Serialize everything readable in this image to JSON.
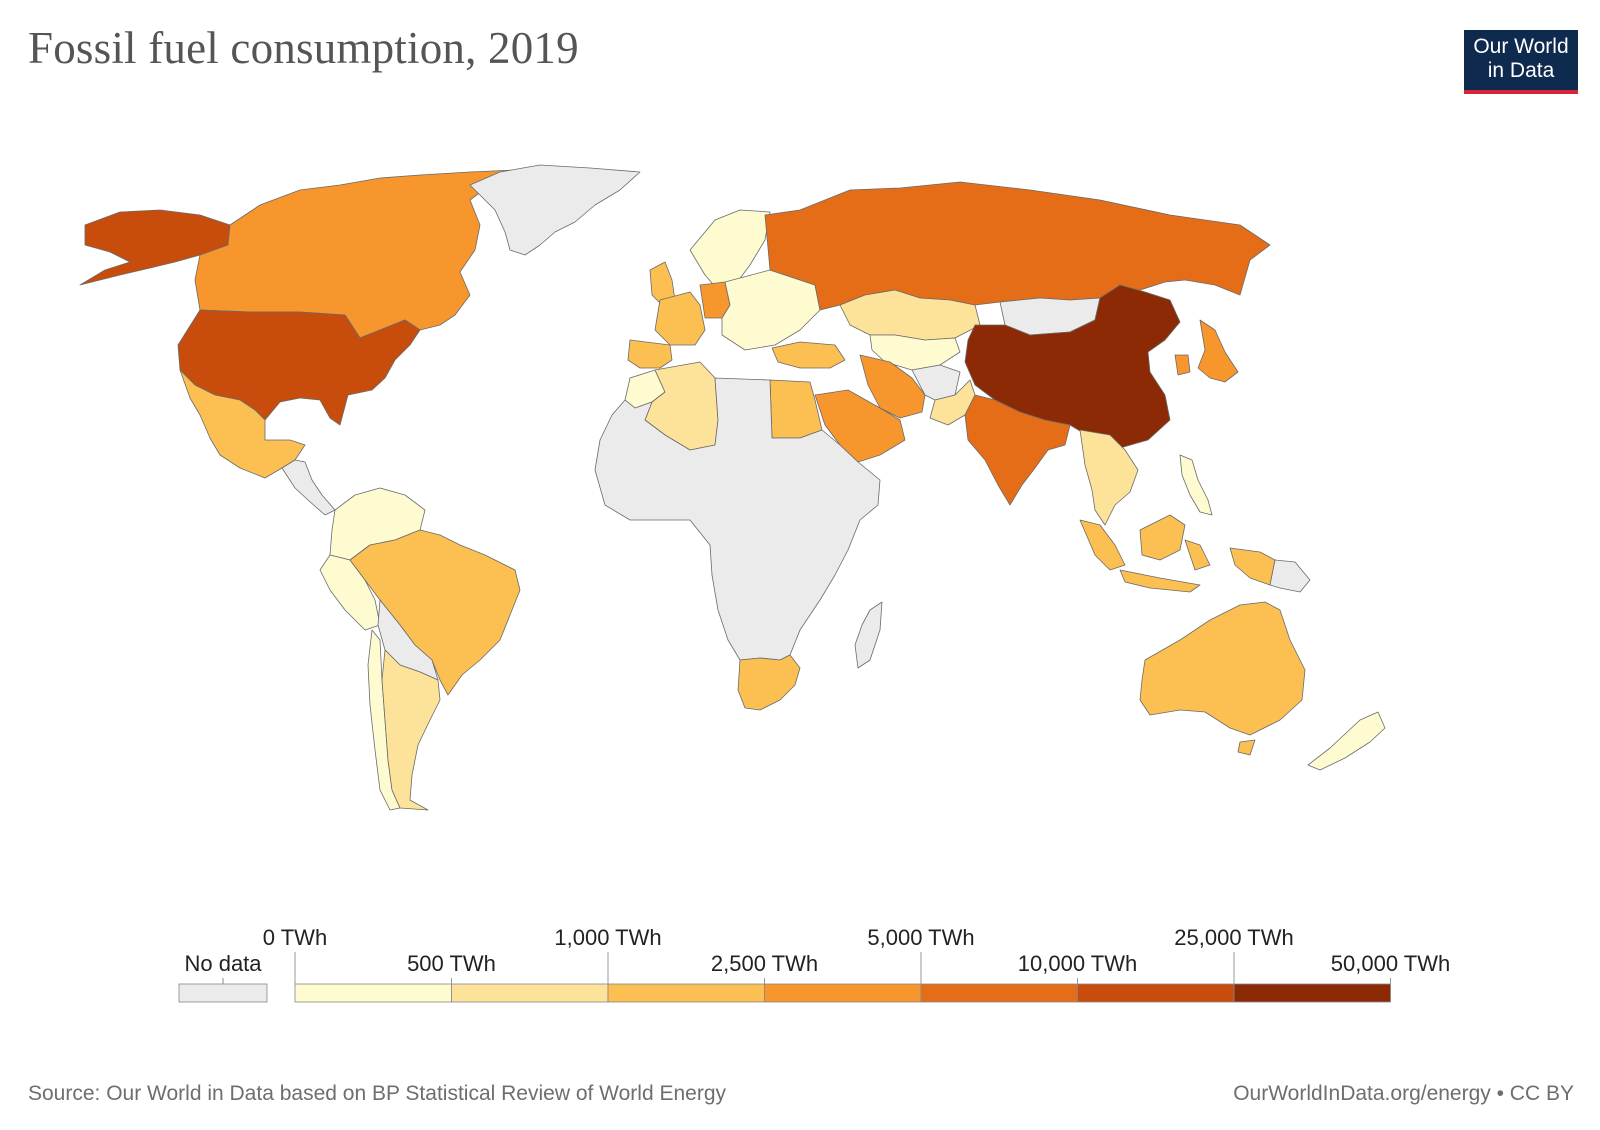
{
  "title": "Fossil fuel consumption, 2019",
  "logo": {
    "line1": "Our World",
    "line2": "in Data"
  },
  "legend": {
    "no_data_label": "No data",
    "no_data_color": "#ebebeb",
    "upper_labels": [
      "0 TWh",
      "1,000 TWh",
      "5,000 TWh",
      "25,000 TWh"
    ],
    "lower_labels": [
      "500 TWh",
      "2,500 TWh",
      "10,000 TWh",
      "50,000 TWh"
    ],
    "bins": [
      {
        "from": 0,
        "to": 500,
        "color": "#fefbd0"
      },
      {
        "from": 500,
        "to": 1000,
        "color": "#fde29a"
      },
      {
        "from": 1000,
        "to": 2500,
        "color": "#fbbf52"
      },
      {
        "from": 2500,
        "to": 5000,
        "color": "#f7962d"
      },
      {
        "from": 5000,
        "to": 10000,
        "color": "#e66d18"
      },
      {
        "from": 10000,
        "to": 25000,
        "color": "#c84c0c"
      },
      {
        "from": 25000,
        "to": 50000,
        "color": "#8b2a05"
      }
    ]
  },
  "countries": [
    {
      "id": "united-states",
      "color": "#c84c0c"
    },
    {
      "id": "alaska",
      "color": "#c84c0c"
    },
    {
      "id": "canada",
      "color": "#f7962d"
    },
    {
      "id": "greenland",
      "color": "#ebebeb"
    },
    {
      "id": "mexico",
      "color": "#fbbf52"
    },
    {
      "id": "central-america",
      "color": "#ebebeb"
    },
    {
      "id": "colombia-venezuela",
      "color": "#fefbd0"
    },
    {
      "id": "ecuador-peru",
      "color": "#fefbd0"
    },
    {
      "id": "brazil",
      "color": "#fbbf52"
    },
    {
      "id": "bolivia-paraguay",
      "color": "#ebebeb"
    },
    {
      "id": "chile",
      "color": "#fefbd0"
    },
    {
      "id": "argentina",
      "color": "#fde29a"
    },
    {
      "id": "western-europe",
      "color": "#fbbf52"
    },
    {
      "id": "spain",
      "color": "#fbbf52"
    },
    {
      "id": "united-kingdom",
      "color": "#fbbf52"
    },
    {
      "id": "scandinavia",
      "color": "#fefbd0"
    },
    {
      "id": "germany",
      "color": "#f7962d"
    },
    {
      "id": "eastern-europe",
      "color": "#fefbd0"
    },
    {
      "id": "russia",
      "color": "#e66d18"
    },
    {
      "id": "kazakhstan",
      "color": "#fde29a"
    },
    {
      "id": "central-asia",
      "color": "#fefbd0"
    },
    {
      "id": "mongolia",
      "color": "#ebebeb"
    },
    {
      "id": "china",
      "color": "#8b2a05"
    },
    {
      "id": "india",
      "color": "#e66d18"
    },
    {
      "id": "pakistan",
      "color": "#fde29a"
    },
    {
      "id": "afghanistan",
      "color": "#ebebeb"
    },
    {
      "id": "iran",
      "color": "#f7962d"
    },
    {
      "id": "turkey",
      "color": "#fbbf52"
    },
    {
      "id": "saudi-arabia",
      "color": "#f7962d"
    },
    {
      "id": "egypt",
      "color": "#fbbf52"
    },
    {
      "id": "algeria",
      "color": "#fde29a"
    },
    {
      "id": "morocco",
      "color": "#fefbd0"
    },
    {
      "id": "africa-rest",
      "color": "#ebebeb"
    },
    {
      "id": "south-africa",
      "color": "#fbbf52"
    },
    {
      "id": "madagascar",
      "color": "#ebebeb"
    },
    {
      "id": "japan",
      "color": "#f7962d"
    },
    {
      "id": "south-korea",
      "color": "#f7962d"
    },
    {
      "id": "southeast-asia",
      "color": "#fde29a"
    },
    {
      "id": "indonesia",
      "color": "#fbbf52"
    },
    {
      "id": "philippines",
      "color": "#fefbd0"
    },
    {
      "id": "papua-new-guinea",
      "color": "#ebebeb"
    },
    {
      "id": "australia",
      "color": "#fbbf52"
    },
    {
      "id": "new-zealand",
      "color": "#fefbd0"
    }
  ],
  "footer": {
    "source": "Source: Our World in Data based on BP Statistical Review of World Energy",
    "license": "OurWorldInData.org/energy • CC BY"
  }
}
